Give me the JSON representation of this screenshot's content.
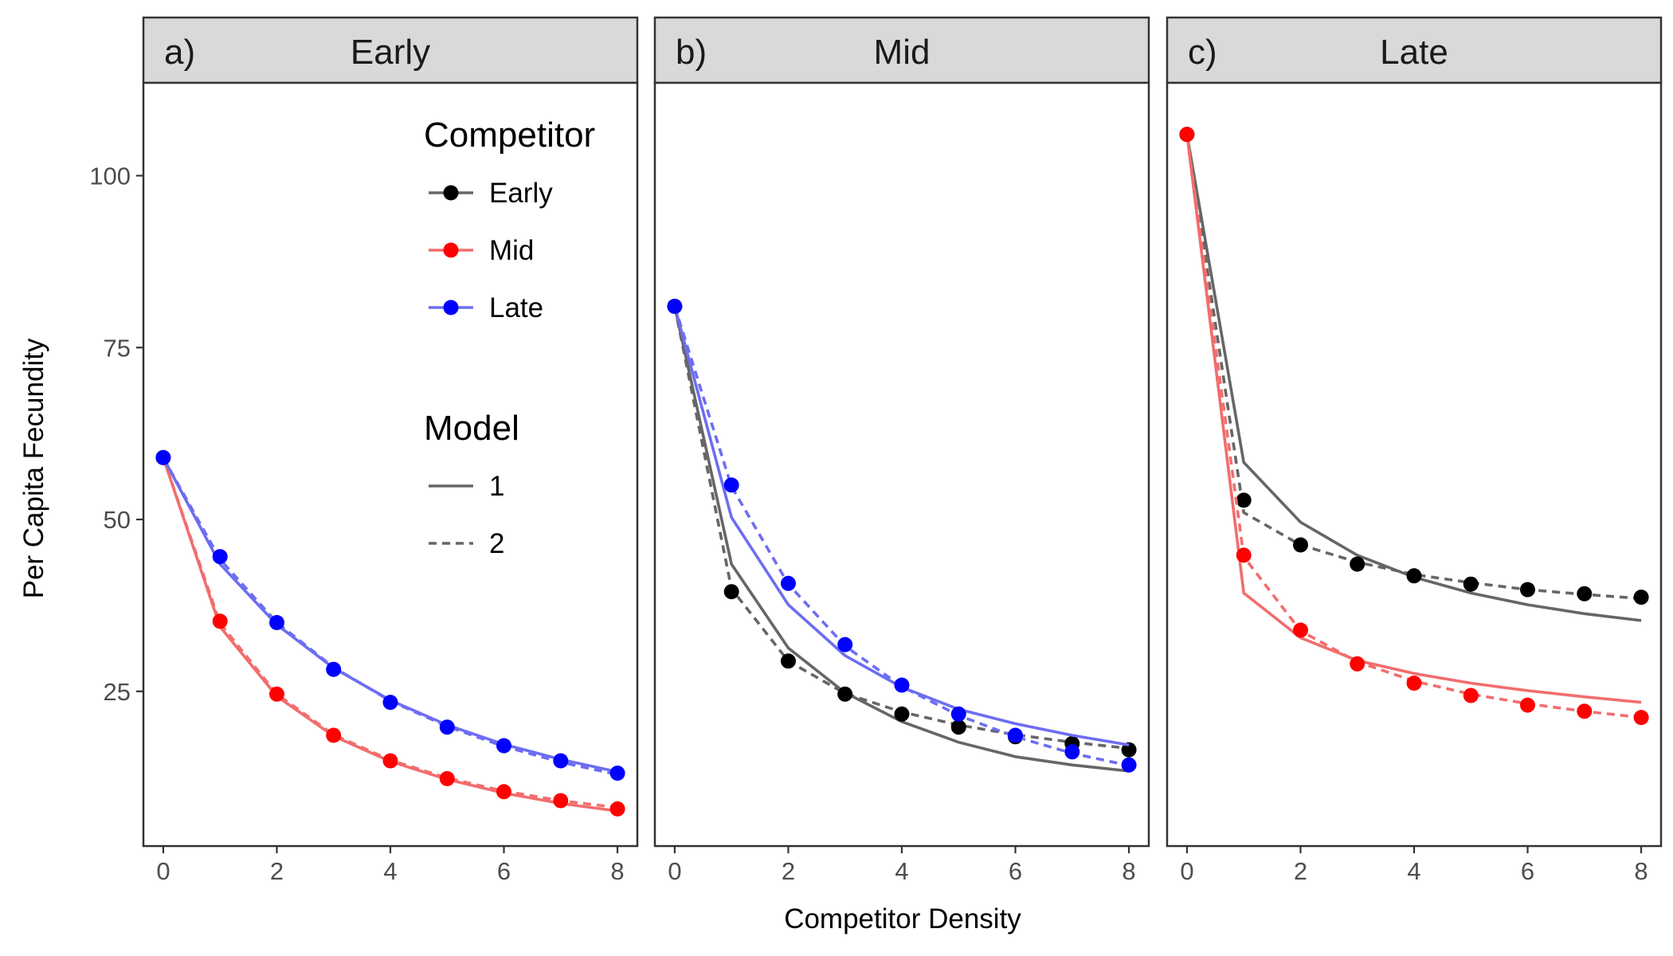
{
  "chart_data": {
    "type": "line",
    "xlabel": "Competitor Density",
    "ylabel": "Per Capita Fecundity",
    "x": [
      0,
      1,
      2,
      3,
      4,
      5,
      6,
      7,
      8
    ],
    "xlim": [
      -0.35,
      8.35
    ],
    "ylim": [
      2.5,
      113.5
    ],
    "xticks": [
      0,
      2,
      4,
      6,
      8
    ],
    "yticks": [
      25,
      50,
      75,
      100
    ],
    "grid": false,
    "colors": {
      "Early": "#000000",
      "Mid": "#ff0000",
      "Late": "#0000ff"
    },
    "line_colors": {
      "Early": "#666666",
      "Mid": "#f26d6d",
      "Late": "#6d6df2"
    },
    "panels": [
      {
        "tag": "a)",
        "title": "Early",
        "series": [
          {
            "competitor": "Mid",
            "points": [
              59,
              35.2,
              24.6,
              18.6,
              14.9,
              12.3,
              10.4,
              9.1,
              7.9
            ],
            "model1": [
              59,
              34.4,
              24.3,
              18.5,
              14.8,
              12.2,
              10.2,
              8.7,
              7.6
            ],
            "model2": [
              59,
              34.9,
              24.6,
              18.7,
              15.0,
              12.4,
              10.5,
              9.1,
              8.1
            ]
          },
          {
            "competitor": "Late",
            "points": [
              59,
              44.6,
              35.0,
              28.2,
              23.4,
              19.8,
              17.1,
              14.9,
              13.1
            ],
            "model1": [
              59,
              43.5,
              34.7,
              28.4,
              23.7,
              20.1,
              17.3,
              15.1,
              13.3
            ],
            "model2": [
              59,
              44.2,
              35.0,
              28.5,
              23.6,
              19.9,
              17.0,
              14.7,
              12.9
            ]
          }
        ]
      },
      {
        "tag": "b)",
        "title": "Mid",
        "series": [
          {
            "competitor": "Early",
            "points": [
              81,
              39.5,
              29.4,
              24.6,
              21.7,
              19.8,
              18.4,
              17.4,
              16.5
            ],
            "model1": [
              81,
              43.5,
              31.3,
              24.8,
              20.6,
              17.6,
              15.5,
              14.3,
              13.4
            ],
            "model2": [
              81,
              39.9,
              29.4,
              24.7,
              22.0,
              20.1,
              18.7,
              17.6,
              16.7
            ]
          },
          {
            "competitor": "Late",
            "points": [
              81,
              55.0,
              40.7,
              31.8,
              25.9,
              21.7,
              18.6,
              16.2,
              14.3
            ],
            "model1": [
              81,
              50.3,
              37.6,
              30.2,
              25.6,
              22.4,
              20.3,
              18.6,
              17.2
            ],
            "model2": [
              81,
              54.8,
              40.6,
              31.6,
              25.7,
              21.5,
              18.4,
              16.0,
              14.2
            ]
          }
        ]
      },
      {
        "tag": "c)",
        "title": "Late",
        "series": [
          {
            "competitor": "Early",
            "points": [
              106,
              52.8,
              46.3,
              43.5,
              41.8,
              40.6,
              39.8,
              39.2,
              38.7
            ],
            "model1": [
              106,
              58.3,
              49.6,
              44.8,
              41.6,
              39.3,
              37.6,
              36.3,
              35.3
            ],
            "model2": [
              106,
              51.0,
              46.3,
              43.8,
              42.0,
              40.8,
              39.8,
              39.1,
              38.5
            ]
          },
          {
            "competitor": "Mid",
            "points": [
              106,
              44.8,
              33.9,
              29.0,
              26.2,
              24.4,
              23.0,
              22.1,
              21.2
            ],
            "model1": [
              106,
              39.3,
              32.8,
              29.5,
              27.6,
              26.2,
              25.1,
              24.2,
              23.4
            ],
            "model2": [
              106,
              44.6,
              33.8,
              29.3,
              26.5,
              24.6,
              23.2,
              22.1,
              21.2
            ]
          }
        ]
      }
    ],
    "legend": {
      "placement": "inside-top-right-of-first-panel",
      "competitor_title": "Competitor",
      "competitor_items": [
        "Early",
        "Mid",
        "Late"
      ],
      "model_title": "Model",
      "model_items": [
        "1",
        "2"
      ]
    }
  }
}
